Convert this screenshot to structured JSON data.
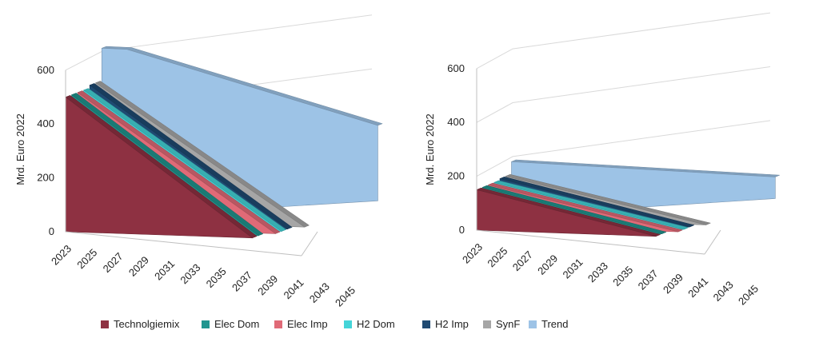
{
  "chart_data": [
    {
      "type": "area",
      "subtype": "3d-area",
      "ylabel": "Mrd. Euro 2022",
      "yticks": [
        "0",
        "200",
        "400",
        "600"
      ],
      "ylim": [
        0,
        600
      ],
      "categories": [
        "2023",
        "2025",
        "2027",
        "2029",
        "2031",
        "2033",
        "2035",
        "2037",
        "2039",
        "2041",
        "2043",
        "2045"
      ],
      "x_start": 2023,
      "x_end": 2045,
      "series": [
        {
          "name": "Technolgiemix",
          "color": "#8e3142",
          "values": [
            [
              2023,
              500
            ],
            [
              2040,
              0
            ]
          ]
        },
        {
          "name": "Elec Dom",
          "color": "#20958f",
          "values": [
            [
              2023,
              500
            ],
            [
              2040,
              0
            ]
          ]
        },
        {
          "name": "Elec Imp",
          "color": "#e06a77",
          "values": [
            [
              2023,
              500
            ],
            [
              2041,
              0
            ]
          ]
        },
        {
          "name": "H2 Dom",
          "color": "#44d4d8",
          "values": [
            [
              2023,
              500
            ],
            [
              2041,
              0
            ]
          ]
        },
        {
          "name": "H2 Imp",
          "color": "#1f4a72",
          "values": [
            [
              2023,
              510
            ],
            [
              2041,
              0
            ]
          ]
        },
        {
          "name": "SynF",
          "color": "#a6a6a6",
          "values": [
            [
              2023,
              510
            ],
            [
              2042,
              0
            ]
          ]
        },
        {
          "name": "Trend",
          "color": "#9dc3e6",
          "values": [
            [
              2023,
              630
            ],
            [
              2025,
              620
            ],
            [
              2045,
              280
            ]
          ]
        }
      ]
    },
    {
      "type": "area",
      "subtype": "3d-area",
      "ylabel": "Mrd. Euro 2022",
      "yticks": [
        "0",
        "200",
        "400",
        "600"
      ],
      "ylim": [
        0,
        600
      ],
      "categories": [
        "2023",
        "2025",
        "2027",
        "2029",
        "2031",
        "2033",
        "2035",
        "2037",
        "2039",
        "2041",
        "2043",
        "2045"
      ],
      "x_start": 2023,
      "x_end": 2045,
      "series": [
        {
          "name": "Technolgiemix",
          "color": "#8e3142",
          "values": [
            [
              2023,
              150
            ],
            [
              2040,
              0
            ]
          ]
        },
        {
          "name": "Elec Dom",
          "color": "#20958f",
          "values": [
            [
              2023,
              150
            ],
            [
              2040,
              0
            ]
          ]
        },
        {
          "name": "Elec Imp",
          "color": "#e06a77",
          "values": [
            [
              2023,
              150
            ],
            [
              2041,
              0
            ]
          ]
        },
        {
          "name": "H2 Dom",
          "color": "#44d4d8",
          "values": [
            [
              2023,
              150
            ],
            [
              2041,
              0
            ]
          ]
        },
        {
          "name": "H2 Imp",
          "color": "#1f4a72",
          "values": [
            [
              2023,
              155
            ],
            [
              2041,
              0
            ]
          ]
        },
        {
          "name": "SynF",
          "color": "#a6a6a6",
          "values": [
            [
              2023,
              155
            ],
            [
              2042,
              0
            ]
          ]
        },
        {
          "name": "Trend",
          "color": "#9dc3e6",
          "values": [
            [
              2023,
              200
            ],
            [
              2045,
              80
            ]
          ]
        }
      ]
    }
  ],
  "legend": [
    {
      "label": "Technolgiemix",
      "color": "#8e3142"
    },
    {
      "label": "Elec Dom",
      "color": "#20958f"
    },
    {
      "label": "Elec Imp",
      "color": "#e06a77"
    },
    {
      "label": "H2 Dom",
      "color": "#44d4d8"
    },
    {
      "label": "H2 Imp",
      "color": "#1f4a72"
    },
    {
      "label": "SynF",
      "color": "#a6a6a6"
    },
    {
      "label": "Trend",
      "color": "#9dc3e6"
    }
  ]
}
